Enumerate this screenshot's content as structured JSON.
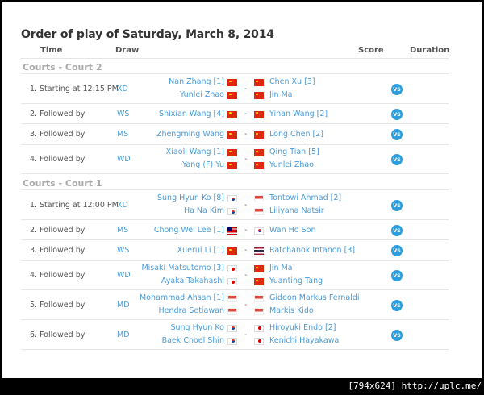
{
  "title": "Order of play of Saturday, March 8, 2014",
  "headers": {
    "time": "Time",
    "draw": "Draw",
    "score": "Score",
    "duration": "Duration"
  },
  "vs_label": "VS",
  "courts": [
    {
      "name": "Courts - Court 2",
      "matches": [
        {
          "num": "1.",
          "time": "Starting at 12:15 PM",
          "event": "XD",
          "left": [
            {
              "name": "Nan Zhang [1]",
              "flag": "cn"
            },
            {
              "name": "Yunlei Zhao",
              "flag": "cn"
            }
          ],
          "right": [
            {
              "name": "Chen Xu [3]",
              "flag": "cn"
            },
            {
              "name": "Jin Ma",
              "flag": "cn"
            }
          ]
        },
        {
          "num": "2.",
          "time": "Followed by",
          "event": "WS",
          "left": [
            {
              "name": "Shixian Wang [4]",
              "flag": "cn"
            }
          ],
          "right": [
            {
              "name": "Yihan Wang [2]",
              "flag": "cn"
            }
          ]
        },
        {
          "num": "3.",
          "time": "Followed by",
          "event": "MS",
          "left": [
            {
              "name": "Zhengming Wang",
              "flag": "cn"
            }
          ],
          "right": [
            {
              "name": "Long Chen [2]",
              "flag": "cn"
            }
          ]
        },
        {
          "num": "4.",
          "time": "Followed by",
          "event": "WD",
          "left": [
            {
              "name": "Xiaoli Wang [1]",
              "flag": "cn"
            },
            {
              "name": "Yang (F) Yu",
              "flag": "cn"
            }
          ],
          "right": [
            {
              "name": "Qing Tian [5]",
              "flag": "cn"
            },
            {
              "name": "Yunlei Zhao",
              "flag": "cn"
            }
          ]
        }
      ]
    },
    {
      "name": "Courts - Court 1",
      "matches": [
        {
          "num": "1.",
          "time": "Starting at 12:00 PM",
          "event": "XD",
          "left": [
            {
              "name": "Sung Hyun Ko [8]",
              "flag": "kr"
            },
            {
              "name": "Ha Na Kim",
              "flag": "kr"
            }
          ],
          "right": [
            {
              "name": "Tontowi Ahmad [2]",
              "flag": "id"
            },
            {
              "name": "Liliyana Natsir",
              "flag": "id"
            }
          ]
        },
        {
          "num": "2.",
          "time": "Followed by",
          "event": "MS",
          "left": [
            {
              "name": "Chong Wei Lee [1]",
              "flag": "my"
            }
          ],
          "right": [
            {
              "name": "Wan Ho Son",
              "flag": "kr"
            }
          ]
        },
        {
          "num": "3.",
          "time": "Followed by",
          "event": "WS",
          "left": [
            {
              "name": "Xuerui Li [1]",
              "flag": "cn"
            }
          ],
          "right": [
            {
              "name": "Ratchanok Intanon [3]",
              "flag": "th"
            }
          ]
        },
        {
          "num": "4.",
          "time": "Followed by",
          "event": "WD",
          "left": [
            {
              "name": "Misaki Matsutomo [3]",
              "flag": "jp"
            },
            {
              "name": "Ayaka Takahashi",
              "flag": "jp"
            }
          ],
          "right": [
            {
              "name": "Jin Ma",
              "flag": "cn"
            },
            {
              "name": "Yuanting Tang",
              "flag": "cn"
            }
          ]
        },
        {
          "num": "5.",
          "time": "Followed by",
          "event": "MD",
          "left": [
            {
              "name": "Mohammad Ahsan [1]",
              "flag": "id"
            },
            {
              "name": "Hendra Setiawan",
              "flag": "id"
            }
          ],
          "right": [
            {
              "name": "Gideon Markus Fernaldi",
              "flag": "id"
            },
            {
              "name": "Markis Kido",
              "flag": "id"
            }
          ]
        },
        {
          "num": "6.",
          "time": "Followed by",
          "event": "MD",
          "left": [
            {
              "name": "Sung Hyun Ko",
              "flag": "kr"
            },
            {
              "name": "Baek Choel Shin",
              "flag": "kr"
            }
          ],
          "right": [
            {
              "name": "Hiroyuki Endo [2]",
              "flag": "jp"
            },
            {
              "name": "Kenichi Hayakawa",
              "flag": "jp"
            }
          ]
        }
      ]
    }
  ],
  "footer": "[794x624] http://uplc.me/"
}
